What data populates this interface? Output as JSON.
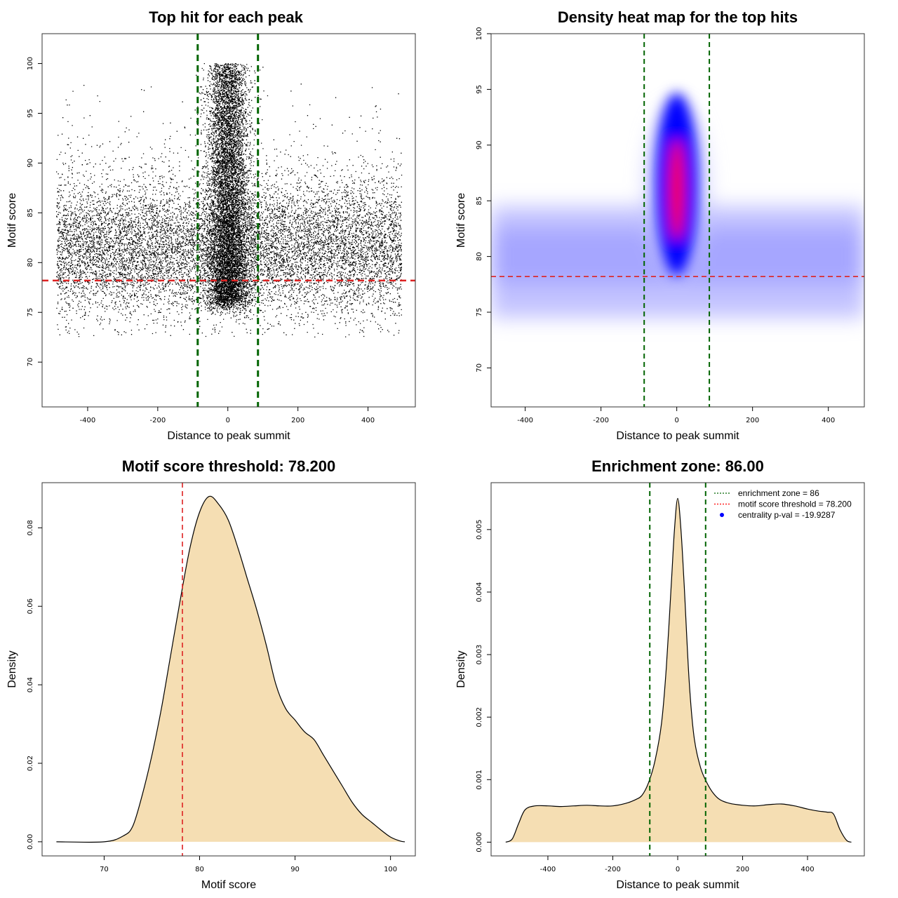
{
  "chart_data": [
    {
      "type": "scatter",
      "title": "Top hit for each peak",
      "xlabel": "Distance to peak summit",
      "ylabel": "Motif score",
      "xlim": [
        -530,
        535
      ],
      "ylim": [
        65.5,
        103
      ],
      "x_ticks": [
        -400,
        -200,
        0,
        200,
        400
      ],
      "y_ticks": [
        70,
        75,
        80,
        85,
        90,
        95,
        100
      ],
      "vlines": [
        -86,
        86
      ],
      "hline": 78.2,
      "point_model": {
        "background": {
          "x_range": [
            -490,
            495
          ],
          "y_mean": 81.2,
          "y_sd": 3.4
        },
        "central": {
          "x_sd": 30,
          "y_range": [
            76,
            100
          ]
        }
      }
    },
    {
      "type": "heatmap",
      "title": "Density heat map for the top hits",
      "xlabel": "Distance to peak summit",
      "ylabel": "Motif score",
      "xlim": [
        -490,
        495
      ],
      "ylim": [
        66.5,
        100
      ],
      "x_ticks": [
        -400,
        -200,
        0,
        200,
        400
      ],
      "y_ticks": [
        70,
        75,
        80,
        85,
        90,
        95,
        100
      ],
      "vlines": [
        -86,
        86
      ],
      "hline": 78.2,
      "colors": {
        "low": "#ffffff",
        "mid": "#0000ff",
        "high": "#ff0000"
      }
    },
    {
      "type": "area",
      "title": "Motif score threshold: 78.200",
      "xlabel": "Motif score",
      "ylabel": "Density",
      "xlim": [
        63.5,
        102.6
      ],
      "ylim": [
        -0.0036,
        0.0915
      ],
      "x_ticks": [
        70,
        80,
        90,
        100
      ],
      "y_ticks": [
        0.0,
        0.02,
        0.04,
        0.06,
        0.08
      ],
      "y_tick_labels": [
        "0.00",
        "0.02",
        "0.04",
        "0.06",
        "0.08"
      ],
      "vline": 78.2,
      "x": [
        65,
        70,
        72,
        73,
        74,
        75,
        76,
        77,
        78,
        79,
        80,
        81,
        82,
        83,
        84,
        85,
        86,
        87,
        88,
        89,
        90,
        91,
        92,
        93,
        94,
        95,
        96,
        97,
        98,
        99,
        100,
        101,
        101.5
      ],
      "y": [
        0.0,
        0.0,
        0.0015,
        0.004,
        0.012,
        0.022,
        0.034,
        0.048,
        0.062,
        0.075,
        0.084,
        0.088,
        0.086,
        0.082,
        0.075,
        0.067,
        0.059,
        0.05,
        0.04,
        0.034,
        0.031,
        0.028,
        0.026,
        0.022,
        0.018,
        0.014,
        0.01,
        0.007,
        0.005,
        0.003,
        0.0012,
        0.0002,
        0.0
      ],
      "fill": "#f5deb3"
    },
    {
      "type": "area",
      "title": "Enrichment zone: 86.00",
      "xlabel": "Distance to peak summit",
      "ylabel": "Density",
      "xlim": [
        -575,
        575
      ],
      "ylim": [
        -0.00022,
        0.00575
      ],
      "x_ticks": [
        -400,
        -200,
        0,
        200,
        400
      ],
      "y_ticks": [
        0.0,
        0.001,
        0.002,
        0.003,
        0.004,
        0.005
      ],
      "y_tick_labels": [
        "0.000",
        "0.001",
        "0.002",
        "0.003",
        "0.004",
        "0.005"
      ],
      "vlines": [
        -86,
        86
      ],
      "x": [
        -530,
        -510,
        -490,
        -470,
        -440,
        -400,
        -360,
        -320,
        -280,
        -240,
        -200,
        -160,
        -130,
        -110,
        -90,
        -70,
        -50,
        -35,
        -20,
        -10,
        0,
        10,
        20,
        35,
        50,
        70,
        90,
        110,
        130,
        160,
        200,
        240,
        280,
        320,
        360,
        400,
        430,
        460,
        480,
        500,
        520,
        535
      ],
      "y": [
        0.0,
        5e-05,
        0.0003,
        0.00052,
        0.00058,
        0.00058,
        0.00057,
        0.00058,
        0.00059,
        0.00058,
        0.00058,
        0.00062,
        0.00068,
        0.00075,
        0.00095,
        0.0013,
        0.0019,
        0.0028,
        0.0041,
        0.005,
        0.0055,
        0.005,
        0.0041,
        0.0026,
        0.0017,
        0.0012,
        0.00095,
        0.00078,
        0.00068,
        0.00062,
        0.00059,
        0.00058,
        0.0006,
        0.00061,
        0.00058,
        0.00053,
        0.0005,
        0.00048,
        0.00045,
        0.0002,
        3e-05,
        0.0
      ],
      "fill": "#f5deb3",
      "legend": [
        {
          "label": "enrichment zone = 86",
          "color": "#006400",
          "style": "dotted-line"
        },
        {
          "label": "motif score threshold = 78.200",
          "color": "#ff0000",
          "style": "dotted-line"
        },
        {
          "label": "centrality p-val = -19.9287",
          "color": "#0000ff",
          "style": "point"
        }
      ]
    }
  ]
}
